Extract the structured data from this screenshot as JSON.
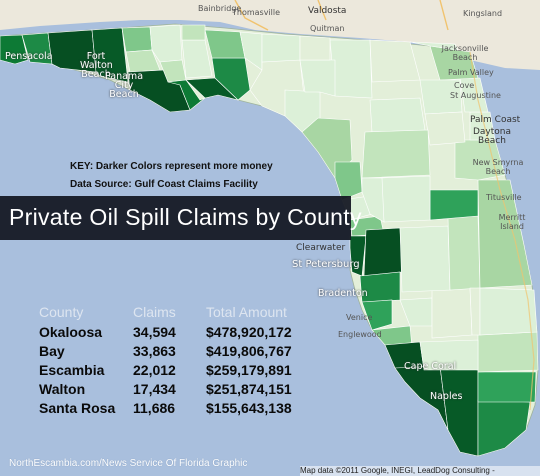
{
  "key_text": "KEY: Darker Colors represent more money",
  "source_text": "Data Source: Gulf Coast Claims Facility",
  "title": "Private Oil Spill Claims by County",
  "table": {
    "headers": [
      "County",
      "Claims",
      "Total Amount"
    ],
    "rows": [
      {
        "county": "Okaloosa",
        "claims": "34,594",
        "amount": "$478,920,172"
      },
      {
        "county": "Bay",
        "claims": "33,863",
        "amount": "$419,806,767"
      },
      {
        "county": "Escambia",
        "claims": "22,012",
        "amount": "$259,179,891"
      },
      {
        "county": "Walton",
        "claims": "17,434",
        "amount": "$251,874,151"
      },
      {
        "county": "Santa Rosa",
        "claims": "11,686",
        "amount": "$155,643,138"
      }
    ]
  },
  "footer_credit": "NorthEscambia.com/News Service Of Florida Graphic",
  "map_attribution": "Map data ©2011 Google, INEGI, LeadDog Consulting -",
  "places": {
    "bainbridge": "Bainbridge",
    "thomasville": "Thomasville",
    "valdosta": "Valdosta",
    "kingsland": "Kingsland",
    "quitman": "Quitman",
    "pensacola": "Pensacola",
    "fort_walton_beach": "Fort Walton Beach",
    "panama_city_beach": "Panama City Beach",
    "jacksonville_beach": "Jacksonville Beach",
    "palm_valley": "Palm Valley",
    "cove": "Cove",
    "st_augustine": "St Augustine",
    "palm_coast": "Palm Coast",
    "daytona_beach": "Daytona Beach",
    "new_smyrna_beach": "New Smyrna Beach",
    "titusville": "Titusville",
    "merritt_island": "Merritt Island",
    "clearwater": "Clearwater",
    "st_petersburg": "St Petersburg",
    "bradenton": "Bradenton",
    "venice": "Venice",
    "englewood": "Englewood",
    "cape_coral": "Cape Coral",
    "naples": "Naples"
  },
  "colors": {
    "water": "#a9bfdd",
    "land": "#e9eee0",
    "lightest": "#dcf0d8",
    "light": "#c2e4bc",
    "medium": "#7fc78a",
    "medium_dark": "#2fa25a",
    "dark": "#0d7a35",
    "darkest": "#064f22",
    "title_band": "#12161f"
  }
}
